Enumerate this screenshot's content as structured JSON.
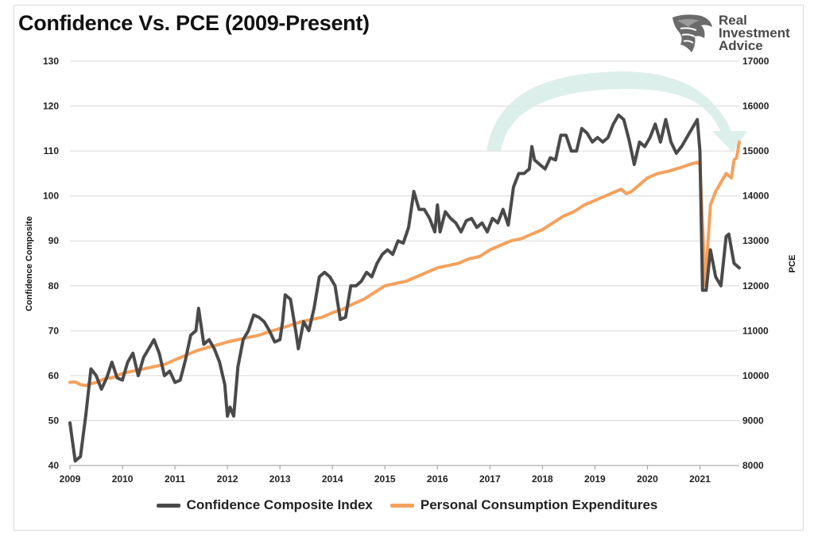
{
  "title": "Confidence Vs. PCE (2009-Present)",
  "brand": {
    "line1": "Real",
    "line2": "Investment",
    "line3": "Advice",
    "logo_icon": "eagle-head-icon"
  },
  "colors": {
    "confidence": "#4a4a4a",
    "pce": "#f4a15d",
    "grid": "#d9d9d9",
    "arrow": "#cde7e0"
  },
  "chart_data": {
    "type": "line",
    "title": "Confidence Vs. PCE (2009-Present)",
    "xlabel": "",
    "xlim": [
      2009.0,
      2021.75
    ],
    "x_ticks": [
      "2009",
      "2010",
      "2011",
      "2012",
      "2013",
      "2014",
      "2015",
      "2016",
      "2017",
      "2018",
      "2019",
      "2020",
      "2021"
    ],
    "y_left": {
      "label": "Confidence Composite",
      "lim": [
        40,
        130
      ],
      "ticks": [
        "40",
        "50",
        "60",
        "70",
        "80",
        "90",
        "100",
        "110",
        "120",
        "130"
      ]
    },
    "y_right": {
      "label": "PCE",
      "lim": [
        8000,
        17000
      ],
      "ticks": [
        "8000",
        "9000",
        "10000",
        "11000",
        "12000",
        "13000",
        "14000",
        "15000",
        "16000",
        "17000"
      ]
    },
    "grid": true,
    "legend_position": "bottom-center",
    "series": [
      {
        "name": "Confidence Composite Index",
        "axis": "left",
        "color": "#4a4a4a",
        "points": [
          [
            2009.0,
            49.5
          ],
          [
            2009.1,
            41
          ],
          [
            2009.2,
            42
          ],
          [
            2009.3,
            51
          ],
          [
            2009.4,
            61.5
          ],
          [
            2009.5,
            60
          ],
          [
            2009.6,
            57
          ],
          [
            2009.7,
            59.5
          ],
          [
            2009.8,
            63
          ],
          [
            2009.9,
            59.5
          ],
          [
            2010.0,
            59
          ],
          [
            2010.1,
            63
          ],
          [
            2010.2,
            65
          ],
          [
            2010.3,
            60
          ],
          [
            2010.4,
            64
          ],
          [
            2010.5,
            66
          ],
          [
            2010.6,
            68
          ],
          [
            2010.7,
            65
          ],
          [
            2010.8,
            60
          ],
          [
            2010.9,
            61
          ],
          [
            2011.0,
            58.5
          ],
          [
            2011.1,
            59
          ],
          [
            2011.2,
            63.5
          ],
          [
            2011.3,
            69
          ],
          [
            2011.4,
            70
          ],
          [
            2011.45,
            75
          ],
          [
            2011.55,
            67
          ],
          [
            2011.65,
            68
          ],
          [
            2011.75,
            66
          ],
          [
            2011.85,
            63
          ],
          [
            2011.95,
            58
          ],
          [
            2012.0,
            51
          ],
          [
            2012.05,
            53
          ],
          [
            2012.12,
            51
          ],
          [
            2012.2,
            62
          ],
          [
            2012.3,
            68
          ],
          [
            2012.4,
            70
          ],
          [
            2012.5,
            73.5
          ],
          [
            2012.6,
            73
          ],
          [
            2012.7,
            72
          ],
          [
            2012.8,
            70
          ],
          [
            2012.9,
            67.5
          ],
          [
            2013.0,
            68
          ],
          [
            2013.05,
            72
          ],
          [
            2013.1,
            78
          ],
          [
            2013.2,
            77
          ],
          [
            2013.3,
            70
          ],
          [
            2013.35,
            66
          ],
          [
            2013.45,
            72
          ],
          [
            2013.55,
            70
          ],
          [
            2013.65,
            75
          ],
          [
            2013.75,
            82
          ],
          [
            2013.85,
            83
          ],
          [
            2013.95,
            82
          ],
          [
            2014.05,
            80
          ],
          [
            2014.15,
            72.5
          ],
          [
            2014.25,
            73
          ],
          [
            2014.35,
            80
          ],
          [
            2014.45,
            80
          ],
          [
            2014.55,
            81
          ],
          [
            2014.65,
            83
          ],
          [
            2014.75,
            82
          ],
          [
            2014.85,
            85
          ],
          [
            2014.95,
            87
          ],
          [
            2015.05,
            88
          ],
          [
            2015.15,
            87
          ],
          [
            2015.25,
            90
          ],
          [
            2015.35,
            89.5
          ],
          [
            2015.45,
            93
          ],
          [
            2015.55,
            101
          ],
          [
            2015.65,
            97
          ],
          [
            2015.75,
            97
          ],
          [
            2015.85,
            95
          ],
          [
            2015.95,
            92
          ],
          [
            2016.0,
            98
          ],
          [
            2016.05,
            92
          ],
          [
            2016.15,
            96.5
          ],
          [
            2016.25,
            95
          ],
          [
            2016.35,
            94
          ],
          [
            2016.45,
            92
          ],
          [
            2016.55,
            94.5
          ],
          [
            2016.65,
            95
          ],
          [
            2016.75,
            93
          ],
          [
            2016.85,
            94
          ],
          [
            2016.95,
            92
          ],
          [
            2017.05,
            95
          ],
          [
            2017.15,
            94
          ],
          [
            2017.25,
            97
          ],
          [
            2017.35,
            93.5
          ],
          [
            2017.45,
            102
          ],
          [
            2017.55,
            105
          ],
          [
            2017.65,
            105
          ],
          [
            2017.75,
            106
          ],
          [
            2017.8,
            111
          ],
          [
            2017.85,
            108
          ],
          [
            2017.95,
            107
          ],
          [
            2018.05,
            106
          ],
          [
            2018.15,
            108.5
          ],
          [
            2018.25,
            108
          ],
          [
            2018.35,
            113.5
          ],
          [
            2018.45,
            113.5
          ],
          [
            2018.55,
            110
          ],
          [
            2018.65,
            110
          ],
          [
            2018.75,
            115
          ],
          [
            2018.85,
            114
          ],
          [
            2018.95,
            112
          ],
          [
            2019.05,
            113
          ],
          [
            2019.15,
            112
          ],
          [
            2019.25,
            113
          ],
          [
            2019.35,
            116
          ],
          [
            2019.45,
            118
          ],
          [
            2019.55,
            117
          ],
          [
            2019.65,
            112.5
          ],
          [
            2019.75,
            107
          ],
          [
            2019.85,
            112
          ],
          [
            2019.95,
            111
          ],
          [
            2020.05,
            113
          ],
          [
            2020.15,
            116
          ],
          [
            2020.25,
            112
          ],
          [
            2020.35,
            117
          ],
          [
            2020.45,
            112
          ],
          [
            2020.55,
            109.5
          ],
          [
            2020.65,
            111
          ],
          [
            2020.75,
            113
          ],
          [
            2020.85,
            115
          ],
          [
            2020.95,
            117
          ],
          [
            2021.0,
            110
          ],
          [
            2021.05,
            79
          ],
          [
            2021.12,
            79
          ],
          [
            2021.2,
            88
          ],
          [
            2021.3,
            82
          ],
          [
            2021.4,
            80
          ],
          [
            2021.5,
            91
          ],
          [
            2021.55,
            91.5
          ],
          [
            2021.65,
            85
          ],
          [
            2021.75,
            84
          ]
        ]
      },
      {
        "name": "Personal Consumption Expenditures",
        "axis": "right",
        "color": "#f4a15d",
        "points": [
          [
            2009.0,
            9850
          ],
          [
            2009.1,
            9860
          ],
          [
            2009.2,
            9800
          ],
          [
            2009.3,
            9780
          ],
          [
            2009.4,
            9820
          ],
          [
            2009.5,
            9850
          ],
          [
            2009.6,
            9900
          ],
          [
            2009.7,
            9950
          ],
          [
            2009.8,
            9950
          ],
          [
            2009.9,
            10000
          ],
          [
            2010.0,
            10050
          ],
          [
            2010.2,
            10100
          ],
          [
            2010.4,
            10150
          ],
          [
            2010.6,
            10200
          ],
          [
            2010.8,
            10250
          ],
          [
            2011.0,
            10350
          ],
          [
            2011.2,
            10450
          ],
          [
            2011.4,
            10550
          ],
          [
            2011.6,
            10620
          ],
          [
            2011.8,
            10680
          ],
          [
            2012.0,
            10750
          ],
          [
            2012.2,
            10800
          ],
          [
            2012.4,
            10850
          ],
          [
            2012.6,
            10900
          ],
          [
            2012.8,
            10980
          ],
          [
            2013.0,
            11050
          ],
          [
            2013.2,
            11120
          ],
          [
            2013.4,
            11200
          ],
          [
            2013.6,
            11250
          ],
          [
            2013.8,
            11300
          ],
          [
            2014.0,
            11400
          ],
          [
            2014.2,
            11480
          ],
          [
            2014.4,
            11600
          ],
          [
            2014.6,
            11700
          ],
          [
            2014.8,
            11850
          ],
          [
            2015.0,
            12000
          ],
          [
            2015.2,
            12050
          ],
          [
            2015.4,
            12100
          ],
          [
            2015.6,
            12200
          ],
          [
            2015.8,
            12300
          ],
          [
            2016.0,
            12400
          ],
          [
            2016.2,
            12450
          ],
          [
            2016.4,
            12500
          ],
          [
            2016.6,
            12600
          ],
          [
            2016.8,
            12650
          ],
          [
            2017.0,
            12800
          ],
          [
            2017.2,
            12900
          ],
          [
            2017.4,
            13000
          ],
          [
            2017.6,
            13050
          ],
          [
            2017.8,
            13150
          ],
          [
            2018.0,
            13250
          ],
          [
            2018.2,
            13400
          ],
          [
            2018.4,
            13550
          ],
          [
            2018.6,
            13650
          ],
          [
            2018.8,
            13800
          ],
          [
            2019.0,
            13900
          ],
          [
            2019.2,
            14000
          ],
          [
            2019.4,
            14100
          ],
          [
            2019.5,
            14150
          ],
          [
            2019.6,
            14050
          ],
          [
            2019.7,
            14100
          ],
          [
            2019.8,
            14200
          ],
          [
            2019.9,
            14300
          ],
          [
            2020.0,
            14400
          ],
          [
            2020.2,
            14500
          ],
          [
            2020.4,
            14550
          ],
          [
            2020.6,
            14620
          ],
          [
            2020.8,
            14700
          ],
          [
            2020.95,
            14750
          ],
          [
            2021.0,
            14700
          ],
          [
            2021.1,
            12000
          ],
          [
            2021.2,
            13800
          ],
          [
            2021.3,
            14100
          ],
          [
            2021.4,
            14300
          ],
          [
            2021.5,
            14500
          ],
          [
            2021.6,
            14400
          ],
          [
            2021.65,
            14800
          ],
          [
            2021.7,
            14850
          ],
          [
            2021.75,
            15200
          ]
        ]
      }
    ]
  },
  "legend": [
    {
      "label": "Confidence Composite Index",
      "color": "#4a4a4a"
    },
    {
      "label": "Personal Consumption Expenditures",
      "color": "#f4a15d"
    }
  ]
}
